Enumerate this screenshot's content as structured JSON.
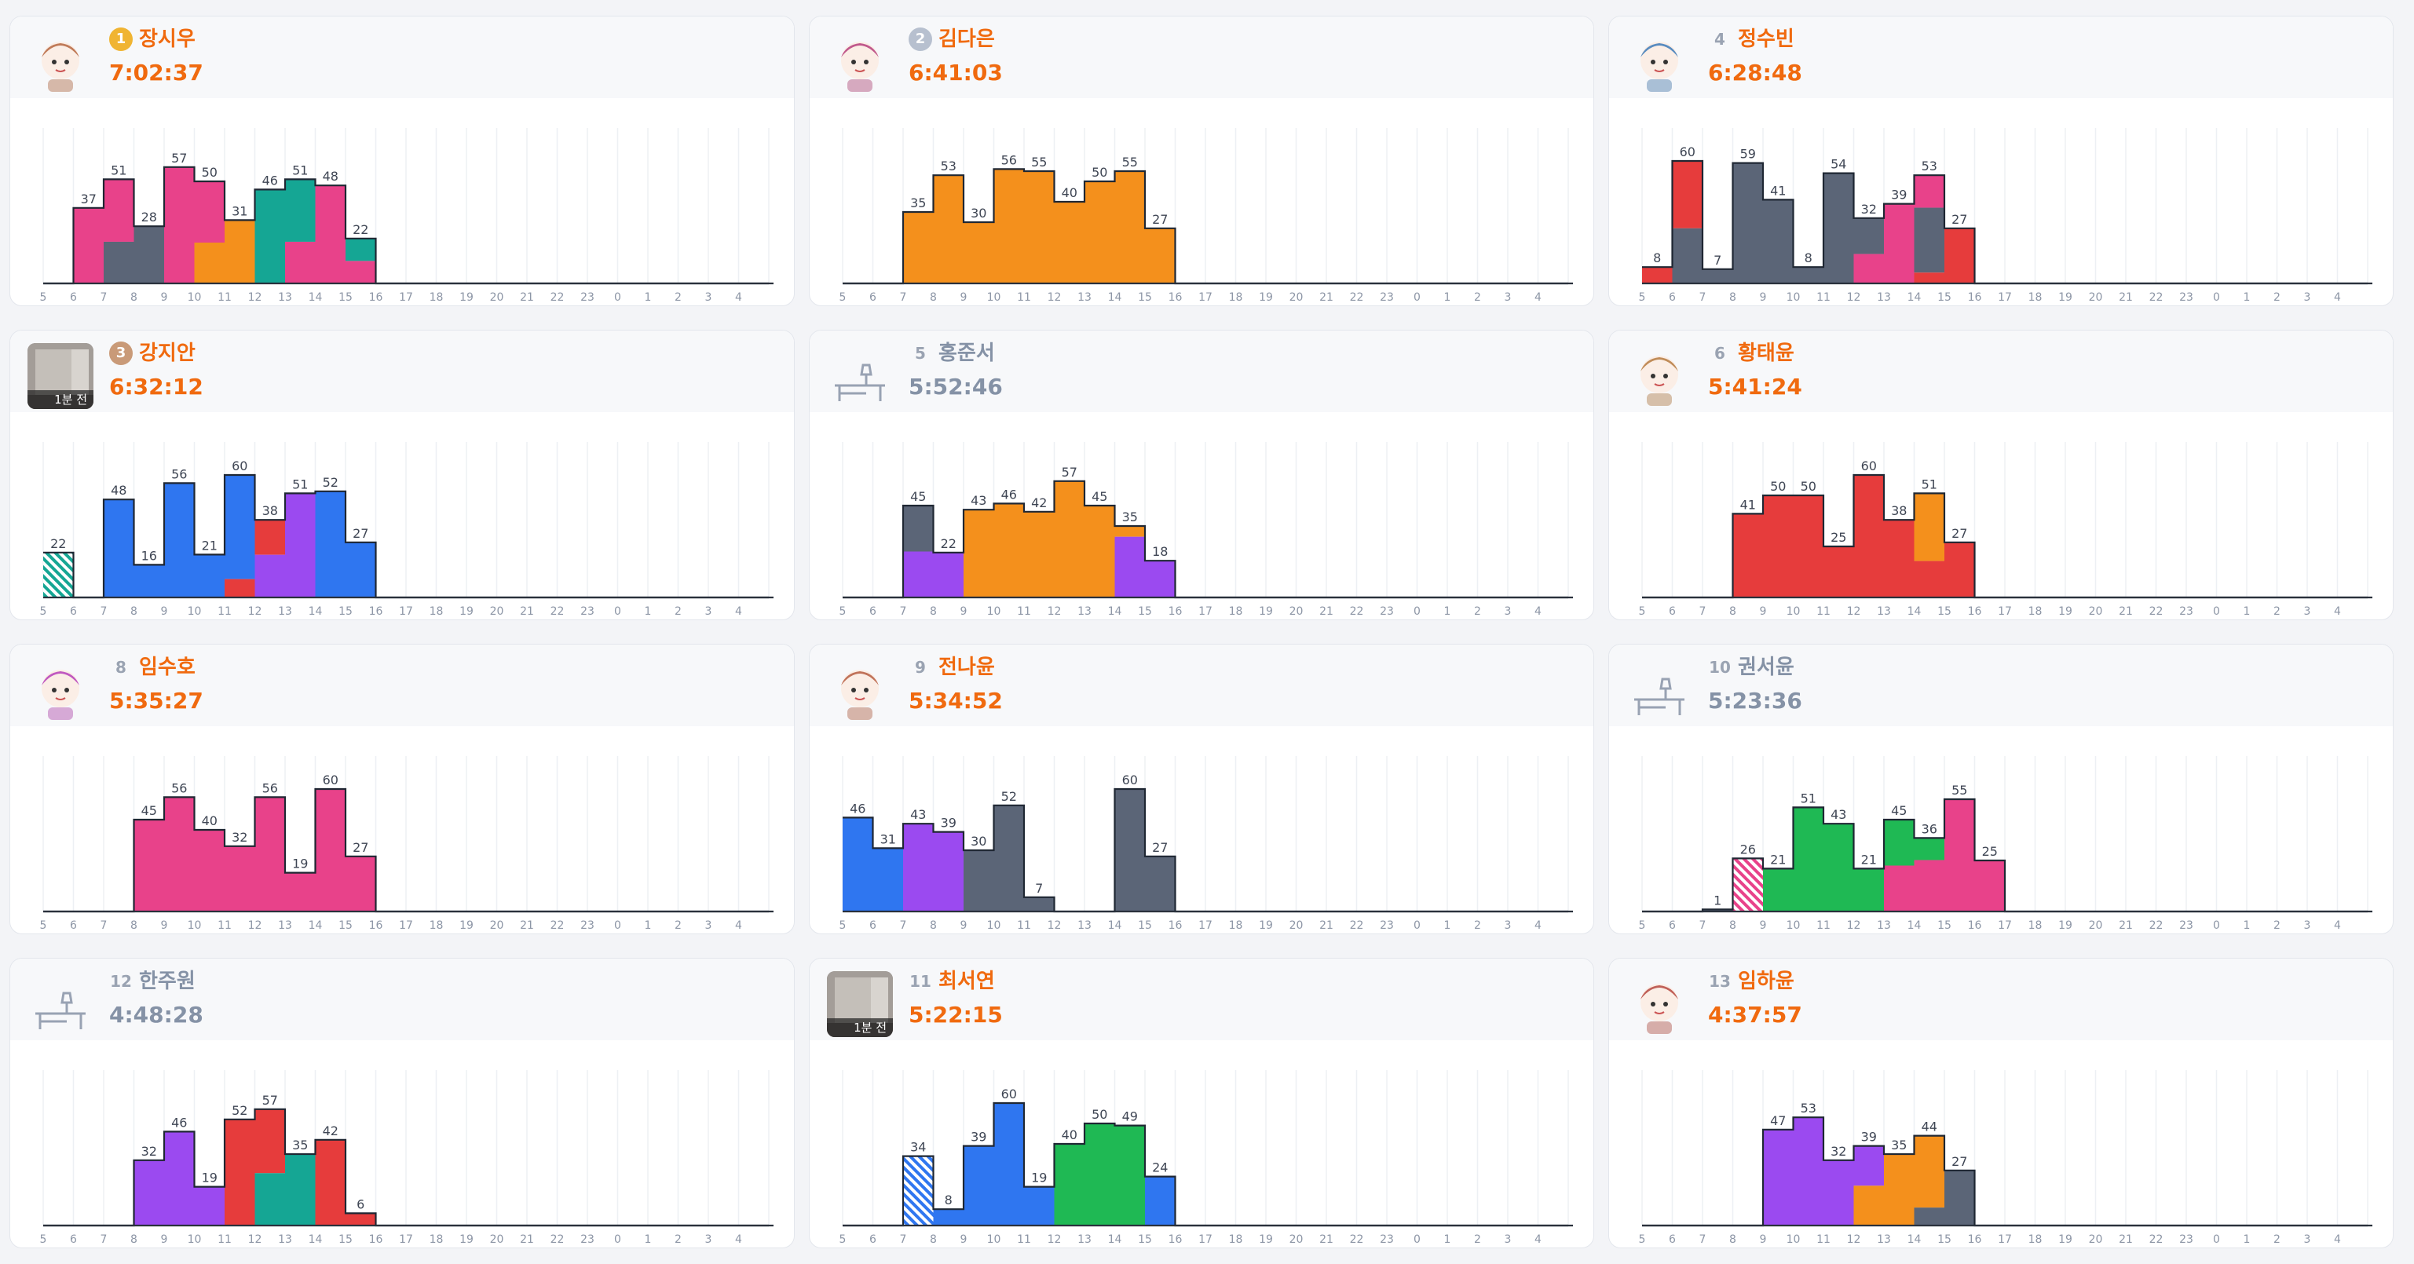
{
  "hours": [
    "5",
    "6",
    "7",
    "8",
    "9",
    "10",
    "11",
    "12",
    "13",
    "14",
    "15",
    "16",
    "17",
    "18",
    "19",
    "20",
    "21",
    "22",
    "23",
    "0",
    "1",
    "2",
    "3",
    "4"
  ],
  "cards": [
    {
      "rank": "1",
      "name": "장시우",
      "time": "7:02:37",
      "medal": "gold",
      "active": true,
      "avatar": "anime-avatar",
      "badge": "",
      "chart": {
        "type": "bar",
        "values": [
          0,
          37,
          51,
          28,
          57,
          50,
          31,
          46,
          51,
          48,
          22,
          0,
          0,
          0,
          0,
          0,
          0,
          0,
          0,
          0,
          0,
          0,
          0,
          0
        ],
        "colors": [
          [
            "#e8428a"
          ],
          [
            "#e8428a"
          ],
          [
            "#e8428a",
            "#5b6577"
          ],
          [
            "#5b6577"
          ],
          [
            "#e8428a"
          ],
          [
            "#e8428a",
            "#f4901c"
          ],
          [
            "#f4901c"
          ],
          [
            "#15a694"
          ],
          [
            "#15a694",
            "#e8428a"
          ],
          [
            "#e8428a"
          ],
          [
            "#15a694",
            "#e8428a"
          ],
          []
        ],
        "splits": [
          [],
          [],
          [
            0.6
          ],
          [],
          [],
          [
            0.6
          ],
          [],
          [],
          [
            0.6
          ],
          [],
          [
            0.5
          ],
          []
        ],
        "hatch": []
      }
    },
    {
      "rank": "2",
      "name": "김다은",
      "time": "6:41:03",
      "medal": "silver",
      "active": true,
      "avatar": "anime-avatar",
      "badge": "",
      "chart": {
        "type": "bar",
        "values": [
          0,
          0,
          35,
          53,
          30,
          56,
          55,
          40,
          50,
          55,
          27,
          0,
          0,
          0,
          0,
          0,
          0,
          0,
          0,
          0,
          0,
          0,
          0,
          0
        ],
        "colors": [
          [],
          [],
          [
            "#f4901c"
          ],
          [
            "#f4901c"
          ],
          [
            "#f4901c"
          ],
          [
            "#f4901c"
          ],
          [
            "#f4901c"
          ],
          [
            "#f4901c"
          ],
          [
            "#f4901c"
          ],
          [
            "#f4901c"
          ],
          [
            "#f4901c"
          ],
          []
        ],
        "splits": [],
        "hatch": []
      }
    },
    {
      "rank": "4",
      "name": "정수빈",
      "time": "6:28:48",
      "medal": "",
      "active": true,
      "avatar": "anime-avatar",
      "badge": "",
      "chart": {
        "type": "bar",
        "values": [
          8,
          60,
          7,
          59,
          41,
          8,
          54,
          32,
          39,
          53,
          27,
          0,
          0,
          0,
          0,
          0,
          0,
          0,
          0,
          0,
          0,
          0,
          0,
          0
        ],
        "colors": [
          [
            "#e63c3c"
          ],
          [
            "#e63c3c",
            "#5b6577"
          ],
          [
            "#5b6577"
          ],
          [
            "#5b6577"
          ],
          [
            "#5b6577"
          ],
          [
            "#5b6577"
          ],
          [
            "#5b6577"
          ],
          [
            "#5b6577",
            "#e8428a"
          ],
          [
            "#e8428a"
          ],
          [
            "#e8428a",
            "#5b6577",
            "#e63c3c"
          ],
          [
            "#e63c3c"
          ],
          []
        ],
        "splits": [
          [],
          [
            0.55
          ],
          [],
          [],
          [],
          [],
          [],
          [
            0.55
          ],
          [],
          [
            0.3,
            0.9
          ],
          [],
          []
        ],
        "hatch": []
      }
    },
    {
      "rank": "3",
      "name": "강지안",
      "time": "6:32:12",
      "medal": "bronze",
      "active": true,
      "avatar": "room-avatar",
      "badge": "1분 전",
      "chart": {
        "type": "bar",
        "values": [
          22,
          0,
          48,
          16,
          56,
          21,
          60,
          38,
          51,
          52,
          27,
          0,
          0,
          0,
          0,
          0,
          0,
          0,
          0,
          0,
          0,
          0,
          0,
          0
        ],
        "colors": [
          [
            "#15a694"
          ],
          [],
          [
            "#2f76f0"
          ],
          [
            "#2f76f0"
          ],
          [
            "#2f76f0"
          ],
          [
            "#2f76f0"
          ],
          [
            "#2f76f0",
            "#e63c3c"
          ],
          [
            "#e63c3c",
            "#9b4af0"
          ],
          [
            "#9b4af0"
          ],
          [
            "#2f76f0"
          ],
          [
            "#2f76f0"
          ],
          []
        ],
        "splits": [
          [],
          [],
          [],
          [],
          [],
          [],
          [
            0.85
          ],
          [
            0.45
          ],
          [],
          [],
          [],
          []
        ],
        "hatch": [
          0
        ]
      }
    },
    {
      "rank": "5",
      "name": "홍준서",
      "time": "5:52:46",
      "medal": "",
      "active": false,
      "avatar": "desk-icon",
      "badge": "",
      "chart": {
        "type": "bar",
        "values": [
          0,
          0,
          45,
          22,
          43,
          46,
          42,
          57,
          45,
          35,
          18,
          0,
          0,
          0,
          0,
          0,
          0,
          0,
          0,
          0,
          0,
          0,
          0,
          0
        ],
        "colors": [
          [],
          [],
          [
            "#5b6577",
            "#9b4af0"
          ],
          [
            "#9b4af0"
          ],
          [
            "#f4901c"
          ],
          [
            "#f4901c"
          ],
          [
            "#f4901c"
          ],
          [
            "#f4901c"
          ],
          [
            "#f4901c"
          ],
          [
            "#f4901c",
            "#9b4af0"
          ],
          [
            "#9b4af0"
          ],
          []
        ],
        "splits": [
          [],
          [],
          [
            0.5
          ],
          [],
          [],
          [],
          [],
          [],
          [],
          [
            0.15
          ],
          [],
          []
        ],
        "hatch": []
      }
    },
    {
      "rank": "6",
      "name": "황태윤",
      "time": "5:41:24",
      "medal": "",
      "active": true,
      "avatar": "anime-avatar",
      "badge": "",
      "chart": {
        "type": "bar",
        "values": [
          0,
          0,
          0,
          41,
          50,
          50,
          25,
          60,
          38,
          51,
          27,
          0,
          0,
          0,
          0,
          0,
          0,
          0,
          0,
          0,
          0,
          0,
          0,
          0
        ],
        "colors": [
          [],
          [],
          [],
          [
            "#e63c3c"
          ],
          [
            "#e63c3c"
          ],
          [
            "#e63c3c"
          ],
          [
            "#e63c3c"
          ],
          [
            "#e63c3c"
          ],
          [
            "#e63c3c"
          ],
          [
            "#f4901c",
            "#e63c3c"
          ],
          [
            "#e63c3c"
          ],
          []
        ],
        "splits": [
          [],
          [],
          [],
          [],
          [],
          [],
          [],
          [],
          [],
          [
            0.65
          ],
          [],
          []
        ],
        "hatch": []
      }
    },
    {
      "rank": "8",
      "name": "임수호",
      "time": "5:35:27",
      "medal": "",
      "active": true,
      "avatar": "anime-avatar",
      "badge": "",
      "chart": {
        "type": "bar",
        "values": [
          0,
          0,
          0,
          45,
          56,
          40,
          32,
          56,
          19,
          60,
          27,
          0,
          0,
          0,
          0,
          0,
          0,
          0,
          0,
          0,
          0,
          0,
          0,
          0
        ],
        "colors": [
          [],
          [],
          [],
          [
            "#e8428a"
          ],
          [
            "#e8428a"
          ],
          [
            "#e8428a"
          ],
          [
            "#e8428a"
          ],
          [
            "#e8428a"
          ],
          [
            "#e8428a"
          ],
          [
            "#e8428a"
          ],
          [
            "#e8428a"
          ],
          []
        ],
        "splits": [],
        "hatch": []
      }
    },
    {
      "rank": "9",
      "name": "전나윤",
      "time": "5:34:52",
      "medal": "",
      "active": true,
      "avatar": "anime-avatar",
      "badge": "",
      "chart": {
        "type": "bar",
        "values": [
          46,
          31,
          43,
          39,
          30,
          52,
          7,
          0,
          0,
          60,
          27,
          0,
          0,
          0,
          0,
          0,
          0,
          0,
          0,
          0,
          0,
          0,
          0,
          0
        ],
        "colors": [
          [
            "#2f76f0"
          ],
          [
            "#2f76f0"
          ],
          [
            "#9b4af0"
          ],
          [
            "#9b4af0"
          ],
          [
            "#5b6577"
          ],
          [
            "#5b6577"
          ],
          [
            "#5b6577"
          ],
          [],
          [],
          [
            "#5b6577"
          ],
          [
            "#5b6577"
          ],
          []
        ],
        "splits": [],
        "hatch": []
      }
    },
    {
      "rank": "10",
      "name": "권서윤",
      "time": "5:23:36",
      "medal": "",
      "active": false,
      "avatar": "desk-icon",
      "badge": "",
      "chart": {
        "type": "bar",
        "values": [
          0,
          0,
          1,
          26,
          21,
          51,
          43,
          21,
          45,
          36,
          55,
          25,
          0,
          0,
          0,
          0,
          0,
          0,
          0,
          0,
          0,
          0,
          0,
          0
        ],
        "colors": [
          [],
          [],
          [
            "#5b6577"
          ],
          [
            "#e8428a"
          ],
          [
            "#1fb954"
          ],
          [
            "#1fb954"
          ],
          [
            "#1fb954"
          ],
          [
            "#1fb954"
          ],
          [
            "#1fb954",
            "#e8428a"
          ],
          [
            "#1fb954",
            "#e8428a"
          ],
          [
            "#e8428a"
          ],
          [
            "#e8428a"
          ]
        ],
        "splits": [
          [],
          [],
          [],
          [],
          [],
          [],
          [],
          [],
          [
            0.5
          ],
          [
            0.3
          ],
          [],
          []
        ],
        "hatch": [
          3
        ],
        "offset": 1
      }
    },
    {
      "rank": "12",
      "name": "한주원",
      "time": "4:48:28",
      "medal": "",
      "active": false,
      "avatar": "desk-icon",
      "badge": "",
      "chart": {
        "type": "bar",
        "values": [
          0,
          0,
          0,
          32,
          46,
          19,
          52,
          57,
          35,
          42,
          6,
          0,
          0,
          0,
          0,
          0,
          0,
          0,
          0,
          0,
          0,
          0,
          0,
          0
        ],
        "colors": [
          [],
          [],
          [],
          [
            "#9b4af0"
          ],
          [
            "#9b4af0"
          ],
          [
            "#9b4af0"
          ],
          [
            "#e63c3c"
          ],
          [
            "#e63c3c",
            "#15a694"
          ],
          [
            "#15a694"
          ],
          [
            "#e63c3c"
          ],
          [
            "#e63c3c"
          ],
          []
        ],
        "splits": [
          [],
          [],
          [],
          [],
          [],
          [],
          [],
          [
            0.55
          ],
          [],
          [],
          [],
          []
        ],
        "hatch": []
      }
    },
    {
      "rank": "11",
      "name": "최서연",
      "time": "5:22:15",
      "medal": "",
      "active": true,
      "avatar": "room-avatar",
      "badge": "1분 전",
      "chart": {
        "type": "bar",
        "values": [
          0,
          0,
          34,
          8,
          39,
          60,
          19,
          40,
          50,
          49,
          24,
          0,
          0,
          0,
          0,
          0,
          0,
          0,
          0,
          0,
          0,
          0,
          0,
          0
        ],
        "colors": [
          [],
          [],
          [
            "#2f76f0"
          ],
          [
            "#2f76f0"
          ],
          [
            "#2f76f0"
          ],
          [
            "#2f76f0"
          ],
          [
            "#2f76f0"
          ],
          [
            "#1fb954"
          ],
          [
            "#1fb954"
          ],
          [
            "#1fb954"
          ],
          [
            "#2f76f0"
          ],
          []
        ],
        "splits": [],
        "hatch": [
          2
        ]
      }
    },
    {
      "rank": "13",
      "name": "임하윤",
      "time": "4:37:57",
      "medal": "",
      "active": true,
      "avatar": "anime-avatar",
      "badge": "",
      "chart": {
        "type": "bar",
        "values": [
          0,
          0,
          0,
          0,
          47,
          53,
          32,
          39,
          35,
          44,
          27,
          0,
          0,
          0,
          0,
          0,
          0,
          0,
          0,
          0,
          0,
          0,
          0,
          0
        ],
        "colors": [
          [],
          [],
          [],
          [],
          [
            "#9b4af0"
          ],
          [
            "#9b4af0"
          ],
          [
            "#9b4af0"
          ],
          [
            "#9b4af0",
            "#f4901c"
          ],
          [
            "#f4901c"
          ],
          [
            "#f4901c",
            "#5b6577"
          ],
          [
            "#5b6577"
          ],
          []
        ],
        "splits": [
          [],
          [],
          [],
          [],
          [],
          [],
          [],
          [
            0.5
          ],
          [],
          [
            0.8
          ],
          [],
          []
        ],
        "hatch": []
      }
    }
  ],
  "colors": {
    "active_text": "#f06a0f",
    "inactive_text": "#8592a6",
    "gold": "#f0b432",
    "silver": "#b7c0cf",
    "bronze": "#c99a78"
  }
}
